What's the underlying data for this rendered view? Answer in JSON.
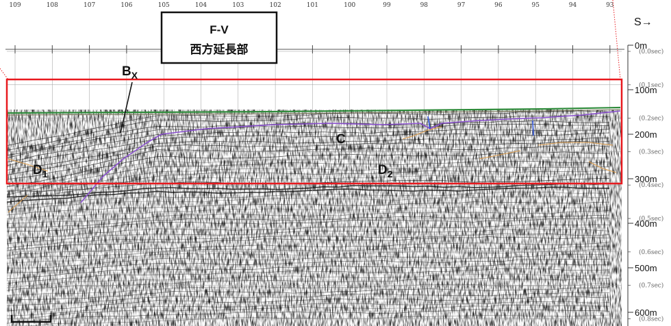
{
  "title": {
    "line1": "F-V",
    "line2": "西方延長部"
  },
  "direction_label": "S→",
  "shotpoints": [
    "109",
    "108",
    "107",
    "106",
    "105",
    "104",
    "103",
    "102",
    "101",
    "100",
    "99",
    "98",
    "97",
    "96",
    "95",
    "94",
    "93"
  ],
  "depth_scale": [
    {
      "label": "0m",
      "value": 0
    },
    {
      "label": "100m",
      "value": 100
    },
    {
      "label": "200m",
      "value": 200
    },
    {
      "label": "300m",
      "value": 300
    },
    {
      "label": "400m",
      "value": 400
    },
    {
      "label": "500m",
      "value": 500
    },
    {
      "label": "600m",
      "value": 600
    }
  ],
  "time_scale": [
    {
      "label": "(0.0sec)",
      "value": 0.0
    },
    {
      "label": "(0.1sec)",
      "value": 0.1
    },
    {
      "label": "(0.2sec)",
      "value": 0.2
    },
    {
      "label": "(0.3sec)",
      "value": 0.3
    },
    {
      "label": "(0.4sec)",
      "value": 0.4
    },
    {
      "label": "(0.5sec)",
      "value": 0.5
    },
    {
      "label": "(0.6sec)",
      "value": 0.6
    },
    {
      "label": "(0.7sec)",
      "value": 0.7
    },
    {
      "label": "(0.8sec)",
      "value": 0.8
    }
  ],
  "unit_labels": {
    "bx_main": "B",
    "bx_sub": "X",
    "c": "C",
    "d1_main": "D",
    "d1_sub": "1",
    "d2_main": "D",
    "d2_sub": "2"
  },
  "colors": {
    "highlight_box": "#e8191e",
    "seafloor": "#2e8b3a",
    "horizon_c": "#8a4fd0",
    "fault": "#2a4fd6",
    "reflector_tan": "#e0a050"
  }
}
